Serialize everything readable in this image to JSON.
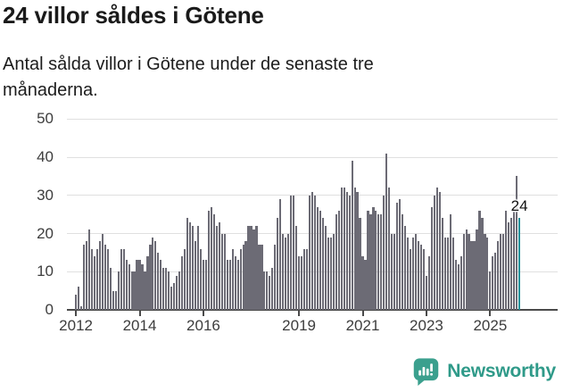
{
  "header": {
    "title": "24 villor såldes i Götene",
    "subtitle": "Antal sålda villor i Götene under de senaste tre månaderna."
  },
  "chart_data": {
    "type": "bar",
    "title": "24 villor såldes i Götene",
    "xlabel": "",
    "ylabel": "",
    "x_start": "2012-01",
    "x_end": "2025-12",
    "x_frequency": "monthly",
    "x_tick_years": [
      2012,
      2014,
      2016,
      2019,
      2021,
      2023,
      2025
    ],
    "y_ticks": [
      0,
      10,
      20,
      30,
      40,
      50
    ],
    "ylim": [
      0,
      50
    ],
    "grid": true,
    "bar_color": "#6c6b75",
    "highlight_color": "#2a939c",
    "highlight_index": 167,
    "highlight_label": "24",
    "values": [
      4,
      6,
      1,
      17,
      18,
      21,
      16,
      14,
      16,
      18,
      20,
      17,
      16,
      11,
      5,
      5,
      10,
      16,
      16,
      13,
      12,
      10,
      10,
      13,
      13,
      12,
      10,
      14,
      17,
      19,
      18,
      15,
      13,
      11,
      11,
      10,
      6,
      7,
      9,
      10,
      14,
      16,
      24,
      23,
      22,
      18,
      22,
      16,
      13,
      13,
      26,
      27,
      25,
      22,
      23,
      20,
      20,
      13,
      13,
      16,
      14,
      13,
      16,
      17,
      18,
      22,
      22,
      21,
      22,
      17,
      17,
      10,
      10,
      9,
      11,
      17,
      24,
      29,
      20,
      19,
      20,
      30,
      30,
      22,
      14,
      14,
      16,
      16,
      30,
      31,
      30,
      27,
      26,
      24,
      22,
      19,
      19,
      20,
      25,
      26,
      32,
      32,
      31,
      30,
      39,
      32,
      31,
      24,
      14,
      13,
      26,
      25,
      27,
      26,
      25,
      25,
      30,
      41,
      32,
      20,
      20,
      28,
      29,
      25,
      22,
      19,
      16,
      19,
      20,
      18,
      17,
      16,
      9,
      14,
      27,
      30,
      32,
      31,
      24,
      19,
      19,
      25,
      19,
      13,
      12,
      14,
      20,
      21,
      20,
      18,
      18,
      21,
      26,
      24,
      20,
      19,
      10,
      14,
      15,
      18,
      20,
      20,
      26,
      23,
      24,
      26,
      35,
      24
    ]
  },
  "footer": {
    "brand": "Newsworthy",
    "brand_color": "#2f9a89",
    "icon_color": "#3ba08e"
  }
}
